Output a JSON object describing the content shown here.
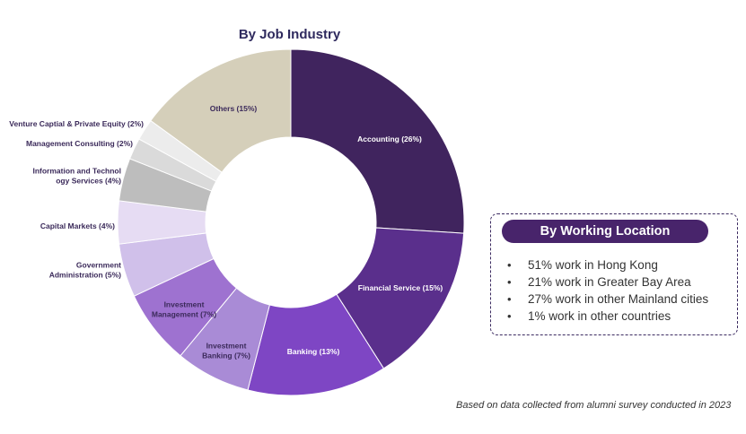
{
  "chart_data": {
    "type": "pie",
    "title": "By Job Industry",
    "slices": [
      {
        "label": "Accounting (26%)",
        "value": 26,
        "color": "#40245e"
      },
      {
        "label": "Financial Service (15%)",
        "value": 15,
        "color": "#5a2f8c"
      },
      {
        "label": "Banking (13%)",
        "value": 13,
        "color": "#7e46c4"
      },
      {
        "label": "Investment Banking (7%)",
        "value": 7,
        "color": "#a98bd6"
      },
      {
        "label": "Investment Management (7%)",
        "value": 7,
        "color": "#9e72d0"
      },
      {
        "label": "Government Administration (5%)",
        "value": 5,
        "color": "#d0c0ea"
      },
      {
        "label": "Capital Markets (4%)",
        "value": 4,
        "color": "#e6dcf3"
      },
      {
        "label": "Information and Technology Services (4%)",
        "value": 4,
        "color": "#bdbdbd"
      },
      {
        "label": "Management Consulting (2%)",
        "value": 2,
        "color": "#dadada"
      },
      {
        "label": "Venture Captial & Private Equity (2%)",
        "value": 2,
        "color": "#ececec"
      },
      {
        "label": "Others (15%)",
        "value": 15,
        "color": "#d5cfba"
      }
    ]
  },
  "location": {
    "title": "By Working Location",
    "bullet": "•",
    "items": [
      "51% work in Hong Kong",
      "21% work in Greater Bay Area",
      "27% work in other Mainland  cities",
      "1% work in other countries"
    ]
  },
  "footnote": "Based on data collected from alumni survey conducted in 2023"
}
